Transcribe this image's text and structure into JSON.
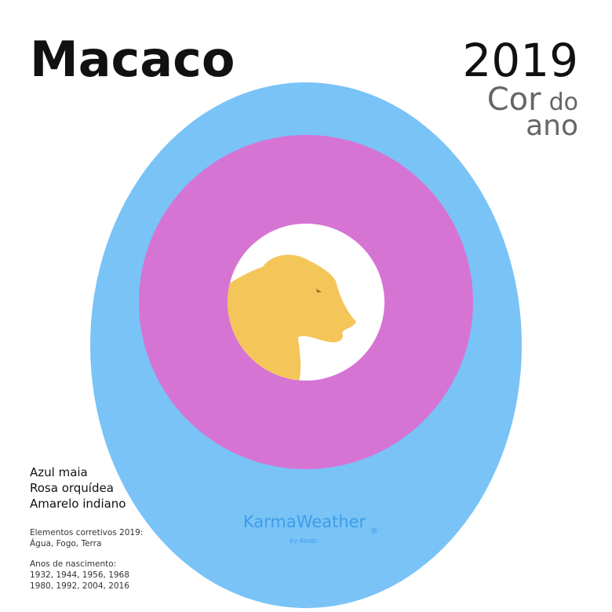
{
  "header": {
    "title": "Macaco",
    "year": "2019",
    "subtitle": {
      "part1": "Cor",
      "part2": "do",
      "part3": "ano"
    }
  },
  "colors": [
    "Azul maia",
    "Rosa orquídea",
    "Amarelo indiano"
  ],
  "elements": {
    "label": "Elementos corretivos 2019:",
    "value": "Água, Fogo, Terra"
  },
  "birth_years": {
    "label": "Anos de nascimento:",
    "lines": [
      "1932, 1944, 1956, 1968",
      "1980, 1992, 2004, 2016"
    ]
  },
  "logo": {
    "name": "KarmaWeather",
    "mark": "®",
    "by": "by Konbi."
  }
}
